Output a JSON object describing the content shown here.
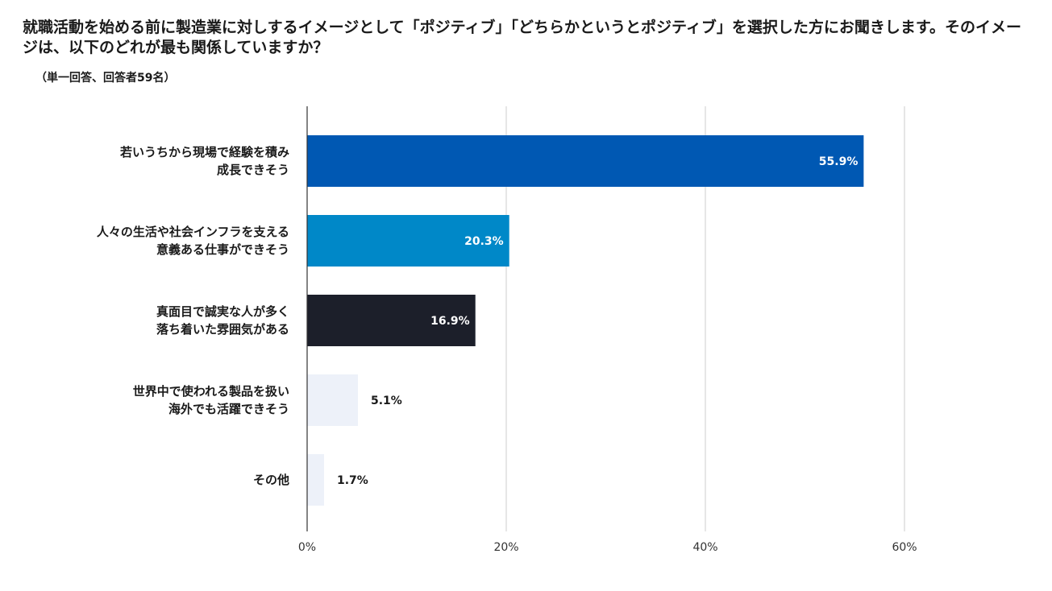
{
  "title": "就職活動を始める前に製造業に対しするイメージとして「ポジティブ」「どちらかというとポジティブ」を選択した方にお聞きします。そのイメージは、以下のどれが最も関係していますか？",
  "subtitle": "（単一回答、回答者59名）",
  "chart_data": {
    "type": "bar",
    "orientation": "horizontal",
    "categories": [
      [
        "若いうちから現場で経験を積み",
        "成長できそう"
      ],
      [
        "人々の生活や社会インフラを支える",
        "意義ある仕事ができそう"
      ],
      [
        "真面目で誠実な人が多く",
        "落ち着いた雰囲気がある"
      ],
      [
        "世界中で使われる製品を扱い",
        "海外でも活躍できそう"
      ],
      [
        "その他"
      ]
    ],
    "values": [
      55.9,
      20.3,
      16.9,
      5.1,
      1.7
    ],
    "value_labels": [
      "55.9%",
      "20.3%",
      "16.9%",
      "5.1%",
      "1.7%"
    ],
    "colors": [
      "#0058b3",
      "#0088c8",
      "#1c1f2a",
      "#edf1f9",
      "#edf1f9"
    ],
    "label_colors": [
      "#ffffff",
      "#ffffff",
      "#ffffff",
      "#1a1a1a",
      "#1a1a1a"
    ],
    "xlim": [
      0,
      60
    ],
    "xticks": [
      0,
      20,
      40,
      60
    ],
    "xtick_labels": [
      "0%",
      "20%",
      "40%",
      "60%"
    ],
    "grid": true
  }
}
